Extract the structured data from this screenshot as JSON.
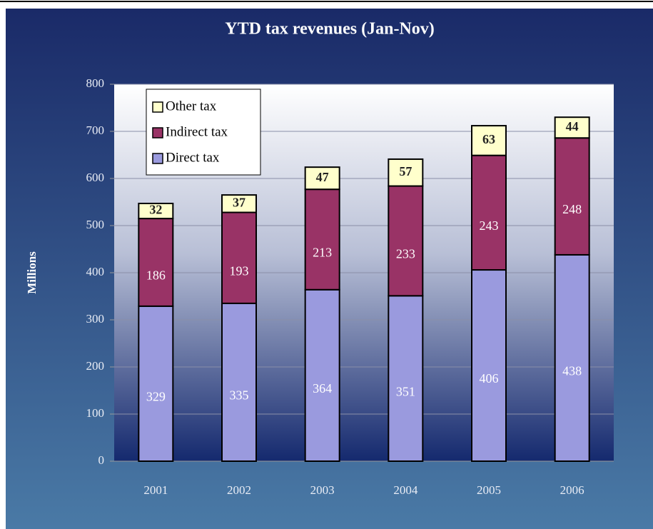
{
  "chart_data": {
    "type": "bar",
    "stacked": true,
    "title": "YTD tax revenues (Jan-Nov)",
    "y_label": "Millions",
    "categories": [
      "2001",
      "2002",
      "2003",
      "2004",
      "2005",
      "2006"
    ],
    "series": [
      {
        "name": "Direct tax",
        "color": "#9a9ade",
        "values": [
          329,
          335,
          364,
          351,
          406,
          438
        ]
      },
      {
        "name": "Indirect tax",
        "color": "#993366",
        "values": [
          186,
          193,
          213,
          233,
          243,
          248
        ]
      },
      {
        "name": "Other tax",
        "color": "#ffffcc",
        "values": [
          32,
          37,
          47,
          57,
          63,
          44
        ]
      }
    ],
    "ylim": [
      0,
      800
    ],
    "yticks": [
      0,
      100,
      200,
      300,
      400,
      500,
      600,
      700,
      800
    ],
    "grid": true
  }
}
